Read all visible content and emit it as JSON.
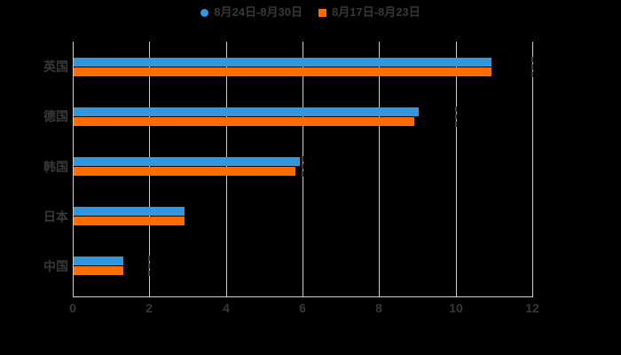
{
  "background": "#000000",
  "colors": {
    "grid": "#cccccc",
    "axis": "#cfcfcf",
    "text": "#383838",
    "dash_marker": "#3e3e3e",
    "series_blue": "#3398db",
    "series_orange": "#ff6c00"
  },
  "legend": {
    "items": [
      {
        "label": "8月24日-8月30日",
        "color": "#3398db",
        "marker": "circle"
      },
      {
        "label": "8月17日-8月23日",
        "color": "#ff6c00",
        "marker": "square"
      }
    ]
  },
  "chart_data": {
    "type": "bar",
    "orientation": "horizontal",
    "title": "",
    "xlabel": "",
    "ylabel": "",
    "categories": [
      "英国",
      "德国",
      "韩国",
      "日本",
      "中国"
    ],
    "series": [
      {
        "name": "8月24日-8月30日",
        "color": "#3398db",
        "values": [
          10.9,
          9.0,
          5.9,
          2.9,
          1.3
        ]
      },
      {
        "name": "8月17日-8月23日",
        "color": "#ff6c00",
        "values": [
          10.9,
          8.9,
          5.8,
          2.9,
          1.3
        ]
      }
    ],
    "xlim": [
      0,
      12
    ],
    "x_ticks": [
      0,
      2,
      4,
      6,
      8,
      10,
      12
    ],
    "grid": true,
    "legend_position": "top",
    "dash_markers": [
      {
        "category": "英国",
        "value": 12
      },
      {
        "category": "德国",
        "value": 10
      },
      {
        "category": "韩国",
        "value": 6
      },
      {
        "category": "中国",
        "value": 2
      }
    ]
  }
}
